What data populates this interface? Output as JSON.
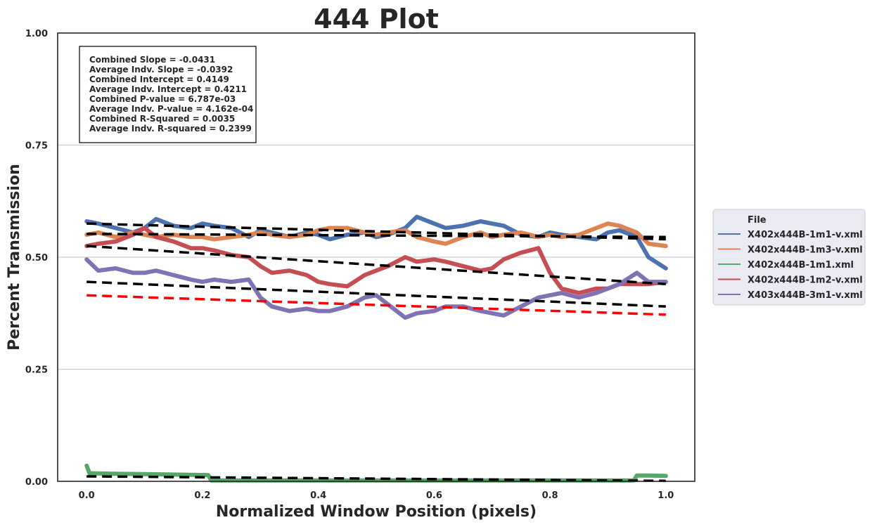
{
  "chart_data": {
    "type": "line",
    "title": "444 Plot",
    "xlabel": "Normalized Window Position (pixels)",
    "ylabel": "Percent Transmission",
    "xlim": [
      -0.05,
      1.05
    ],
    "ylim": [
      0.0,
      1.0
    ],
    "xticks": [
      0.0,
      0.2,
      0.4,
      0.6,
      0.8,
      1.0
    ],
    "xtick_labels": [
      "0.0",
      "0.2",
      "0.4",
      "0.6",
      "0.8",
      "1.0"
    ],
    "yticks": [
      0.0,
      0.25,
      0.5,
      0.75,
      1.0
    ],
    "ytick_labels": [
      "0.00",
      "0.25",
      "0.50",
      "0.75",
      "1.00"
    ],
    "grid": "horizontal",
    "stats_box": [
      "Combined Slope = -0.0431",
      "Average Indv. Slope = -0.0392",
      "Combined Intercept = 0.4149",
      "Average Indv. Intercept = 0.4211",
      "Combined P-value = 6.787e-03",
      "Average Indv. P-value = 4.162e-04",
      "Combined R-Squared = 0.0035",
      "Average Indv. R-squared = 0.2399"
    ],
    "legend": {
      "title": "File",
      "placement": "outside-right",
      "entries": [
        "X402x444B-1m1-v.xml",
        "X402x444B-1m3-v.xml",
        "X402x444B-1m1.xml",
        "X402x444B-1m2-v.xml",
        "X403x444B-3m1-v.xml"
      ]
    },
    "series": [
      {
        "name": "X402x444B-1m1-v.xml",
        "color": "#4c72b0",
        "x": [
          0.0,
          0.02,
          0.05,
          0.08,
          0.1,
          0.12,
          0.15,
          0.18,
          0.2,
          0.22,
          0.25,
          0.28,
          0.3,
          0.32,
          0.35,
          0.38,
          0.4,
          0.42,
          0.45,
          0.48,
          0.5,
          0.52,
          0.55,
          0.57,
          0.6,
          0.62,
          0.65,
          0.68,
          0.7,
          0.72,
          0.75,
          0.78,
          0.8,
          0.82,
          0.85,
          0.88,
          0.9,
          0.92,
          0.95,
          0.97,
          1.0
        ],
        "y": [
          0.58,
          0.575,
          0.565,
          0.555,
          0.565,
          0.585,
          0.57,
          0.565,
          0.575,
          0.57,
          0.565,
          0.545,
          0.56,
          0.555,
          0.545,
          0.555,
          0.55,
          0.54,
          0.55,
          0.555,
          0.545,
          0.55,
          0.565,
          0.59,
          0.575,
          0.565,
          0.57,
          0.58,
          0.575,
          0.57,
          0.55,
          0.545,
          0.555,
          0.55,
          0.545,
          0.54,
          0.555,
          0.56,
          0.545,
          0.5,
          0.475
        ]
      },
      {
        "name": "X402x444B-1m3-v.xml",
        "color": "#dd8452",
        "x": [
          0.0,
          0.02,
          0.05,
          0.08,
          0.1,
          0.12,
          0.15,
          0.18,
          0.2,
          0.22,
          0.25,
          0.28,
          0.3,
          0.32,
          0.35,
          0.38,
          0.4,
          0.42,
          0.45,
          0.48,
          0.5,
          0.52,
          0.55,
          0.57,
          0.6,
          0.62,
          0.65,
          0.68,
          0.7,
          0.72,
          0.75,
          0.78,
          0.8,
          0.82,
          0.85,
          0.88,
          0.9,
          0.92,
          0.95,
          0.97,
          1.0
        ],
        "y": [
          0.55,
          0.555,
          0.545,
          0.555,
          0.55,
          0.545,
          0.55,
          0.545,
          0.545,
          0.54,
          0.545,
          0.55,
          0.555,
          0.55,
          0.545,
          0.55,
          0.56,
          0.565,
          0.565,
          0.555,
          0.55,
          0.555,
          0.56,
          0.545,
          0.535,
          0.53,
          0.545,
          0.555,
          0.545,
          0.55,
          0.555,
          0.545,
          0.55,
          0.545,
          0.55,
          0.565,
          0.575,
          0.57,
          0.555,
          0.53,
          0.525
        ]
      },
      {
        "name": "X402x444B-1m1.xml",
        "color": "#55a868",
        "x": [
          0.0,
          0.005,
          0.05,
          0.1,
          0.15,
          0.21,
          0.215,
          0.3,
          0.4,
          0.5,
          0.6,
          0.7,
          0.8,
          0.9,
          0.945,
          0.95,
          0.97,
          1.0
        ],
        "y": [
          0.035,
          0.018,
          0.017,
          0.016,
          0.015,
          0.014,
          0.002,
          0.002,
          0.002,
          0.002,
          0.002,
          0.002,
          0.002,
          0.002,
          0.002,
          0.013,
          0.013,
          0.012
        ]
      },
      {
        "name": "X402x444B-1m2-v.xml",
        "color": "#c44e52",
        "x": [
          0.0,
          0.02,
          0.05,
          0.08,
          0.1,
          0.12,
          0.15,
          0.18,
          0.2,
          0.22,
          0.25,
          0.28,
          0.3,
          0.32,
          0.35,
          0.38,
          0.4,
          0.42,
          0.45,
          0.48,
          0.5,
          0.52,
          0.55,
          0.57,
          0.6,
          0.62,
          0.65,
          0.68,
          0.7,
          0.72,
          0.75,
          0.78,
          0.8,
          0.82,
          0.85,
          0.88,
          0.9,
          0.92,
          0.95,
          0.97,
          1.0
        ],
        "y": [
          0.525,
          0.53,
          0.535,
          0.55,
          0.565,
          0.545,
          0.535,
          0.52,
          0.52,
          0.515,
          0.505,
          0.5,
          0.48,
          0.465,
          0.47,
          0.46,
          0.445,
          0.44,
          0.435,
          0.46,
          0.47,
          0.48,
          0.5,
          0.49,
          0.495,
          0.49,
          0.48,
          0.47,
          0.475,
          0.495,
          0.51,
          0.52,
          0.465,
          0.43,
          0.42,
          0.43,
          0.43,
          0.44,
          0.44,
          0.44,
          0.445
        ]
      },
      {
        "name": "X403x444B-3m1-v.xml",
        "color": "#8172b3",
        "x": [
          0.0,
          0.02,
          0.05,
          0.08,
          0.1,
          0.12,
          0.15,
          0.18,
          0.2,
          0.22,
          0.25,
          0.28,
          0.3,
          0.32,
          0.35,
          0.38,
          0.4,
          0.42,
          0.45,
          0.48,
          0.5,
          0.52,
          0.55,
          0.57,
          0.6,
          0.62,
          0.65,
          0.68,
          0.7,
          0.72,
          0.75,
          0.78,
          0.8,
          0.82,
          0.85,
          0.88,
          0.9,
          0.92,
          0.95,
          0.97,
          1.0
        ],
        "y": [
          0.495,
          0.47,
          0.475,
          0.465,
          0.465,
          0.47,
          0.46,
          0.45,
          0.445,
          0.45,
          0.445,
          0.45,
          0.41,
          0.39,
          0.38,
          0.385,
          0.38,
          0.38,
          0.39,
          0.41,
          0.415,
          0.395,
          0.365,
          0.375,
          0.38,
          0.39,
          0.39,
          0.38,
          0.375,
          0.37,
          0.39,
          0.41,
          0.415,
          0.42,
          0.41,
          0.42,
          0.43,
          0.44,
          0.465,
          0.445,
          0.445
        ]
      }
    ],
    "fit_lines": [
      {
        "color": "#000000",
        "x": [
          0.0,
          1.0
        ],
        "y": [
          0.575,
          0.54
        ]
      },
      {
        "color": "#000000",
        "x": [
          0.0,
          1.0
        ],
        "y": [
          0.552,
          0.545
        ]
      },
      {
        "color": "#000000",
        "x": [
          0.0,
          1.0
        ],
        "y": [
          0.525,
          0.44
        ]
      },
      {
        "color": "#000000",
        "x": [
          0.0,
          1.0
        ],
        "y": [
          0.445,
          0.39
        ]
      },
      {
        "color": "#000000",
        "x": [
          0.0,
          1.0
        ],
        "y": [
          0.011,
          0.001
        ]
      },
      {
        "color": "#ff0000",
        "x": [
          0.0,
          1.0
        ],
        "y": [
          0.4149,
          0.3718
        ]
      }
    ]
  }
}
